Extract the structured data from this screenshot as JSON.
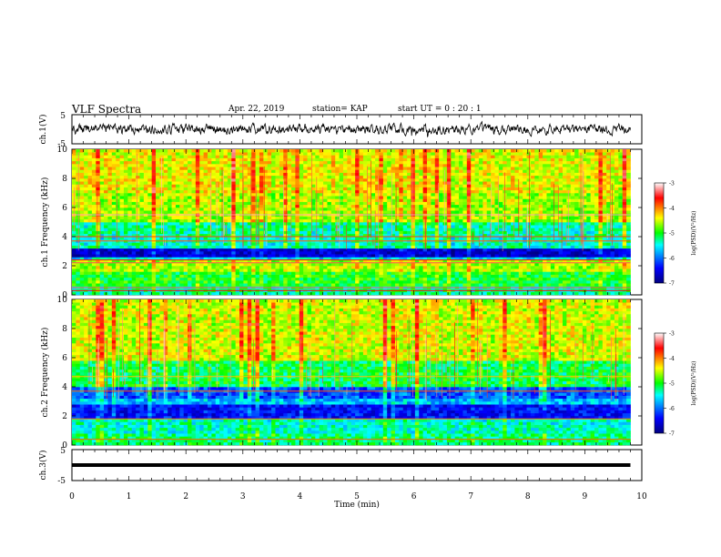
{
  "header": {
    "title": "VLF Spectra",
    "date": "Apr. 22, 2019",
    "station": "station= KAP",
    "start": "start  UT =  0 : 20 : 1"
  },
  "chart_data": [
    {
      "type": "line",
      "name": "ch.1 waveform",
      "ylabel": "ch.1(V)",
      "ylim": [
        -5,
        5
      ],
      "yticks": [
        "5",
        "-5"
      ],
      "xlim": [
        0,
        10
      ],
      "level_v": 0.0,
      "noise_amplitude_v": 1.5
    },
    {
      "type": "heatmap",
      "name": "ch.1 spectrogram",
      "ylabel": "ch.1 Frequency (kHz)",
      "ylim": [
        0,
        10
      ],
      "yticks": [
        "0",
        "2",
        "4",
        "6",
        "8",
        "10"
      ],
      "xlim": [
        0,
        9.8
      ],
      "colorbar": {
        "label": "log(PSD)(V^2/Hz)",
        "range": [
          -7,
          -3
        ],
        "ticks": [
          "-3",
          "-4",
          "-5",
          "-6",
          "-7"
        ]
      },
      "bands_khz": [
        {
          "from": 0,
          "to": 0.7,
          "level": -5.3
        },
        {
          "from": 0.7,
          "to": 1.6,
          "level": -5.0
        },
        {
          "from": 1.6,
          "to": 2.4,
          "level": -4.6
        },
        {
          "from": 2.4,
          "to": 2.7,
          "level": -5.6
        },
        {
          "from": 2.7,
          "to": 3.3,
          "level": -6.6
        },
        {
          "from": 3.3,
          "to": 4.0,
          "level": -5.4
        },
        {
          "from": 4.0,
          "to": 5.0,
          "level": -5.3
        },
        {
          "from": 5.0,
          "to": 7.0,
          "level": -4.6
        },
        {
          "from": 7.0,
          "to": 10.0,
          "level": -4.4
        }
      ],
      "lines_khz": [
        {
          "f": 0.3,
          "level": -3.6
        },
        {
          "f": 0.5,
          "level": -3.4
        },
        {
          "f": 2.2,
          "level": -3.4
        },
        {
          "f": 2.4,
          "level": -3.7
        },
        {
          "f": 3.7,
          "level": -3.9
        },
        {
          "f": 4.0,
          "level": -3.8
        },
        {
          "f": 5.5,
          "level": -3.2
        }
      ]
    },
    {
      "type": "heatmap",
      "name": "ch.2 spectrogram",
      "ylabel": "ch.2 Frequency (kHz)",
      "ylim": [
        0,
        10
      ],
      "yticks": [
        "0",
        "2",
        "4",
        "6",
        "8",
        "10"
      ],
      "xlim": [
        0,
        9.8
      ],
      "colorbar": {
        "label": "log(PSD)(V^2/Hz)",
        "range": [
          -7,
          -3
        ],
        "ticks": [
          "-3",
          "-4",
          "-5",
          "-6",
          "-7"
        ]
      },
      "bands_khz": [
        {
          "from": 0,
          "to": 0.8,
          "level": -5.2
        },
        {
          "from": 0.8,
          "to": 1.9,
          "level": -5.4
        },
        {
          "from": 1.9,
          "to": 2.9,
          "level": -6.4
        },
        {
          "from": 2.9,
          "to": 3.3,
          "level": -5.7
        },
        {
          "from": 3.3,
          "to": 4.0,
          "level": -6.1
        },
        {
          "from": 4.0,
          "to": 5.8,
          "level": -5.1
        },
        {
          "from": 5.8,
          "to": 10.0,
          "level": -4.5
        }
      ],
      "lines_khz": [
        {
          "f": 0.4,
          "level": -3.9
        },
        {
          "f": 1.8,
          "level": -4.0
        },
        {
          "f": 3.7,
          "level": -3.9
        },
        {
          "f": 4.7,
          "level": -4.2
        }
      ]
    },
    {
      "type": "line",
      "name": "ch.3 waveform",
      "ylabel": "ch.3(V)",
      "ylim": [
        -5,
        5
      ],
      "yticks": [
        "5",
        "-5"
      ],
      "xlim": [
        0,
        10
      ],
      "level_v": 0.0,
      "noise_amplitude_v": 0.0
    }
  ],
  "x_axis": {
    "label": "Time (min)",
    "range": [
      0,
      10
    ],
    "ticks": [
      "0",
      "1",
      "2",
      "3",
      "4",
      "5",
      "6",
      "7",
      "8",
      "9",
      "10"
    ]
  },
  "colors": {
    "colormap": [
      "#00007f",
      "#0000ff",
      "#00ffff",
      "#00ff00",
      "#ffff00",
      "#ff0000",
      "#ffffff"
    ]
  }
}
